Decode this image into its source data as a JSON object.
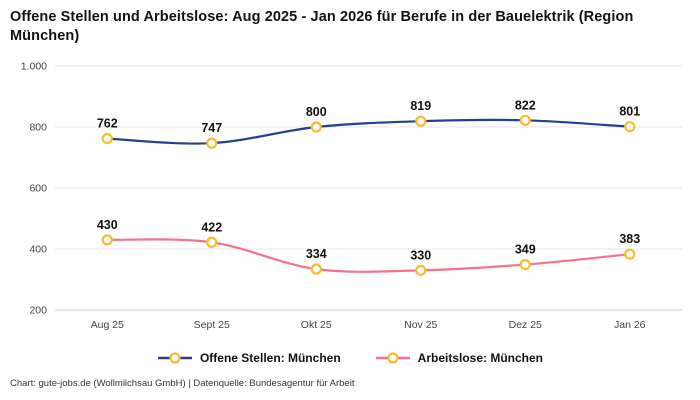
{
  "title": "Offene Stellen und Arbeitslose: Aug 2025 - Jan 2026 für Berufe in der Bauelektrik (Region München)",
  "footer": "Chart: gute-jobs.de (Wollmilchsau GmbH) | Datenquelle: Bundesagentur für Arbeit",
  "colors": {
    "series1": "#25408f",
    "series2": "#f4728c",
    "marker_fill": "#ffffff",
    "marker_stroke": "#f9bb2d",
    "grid": "#e4e4e4",
    "axis": "#cfcfcf",
    "label": "#121212",
    "tick": "#444444"
  },
  "chart_data": {
    "type": "line",
    "title": "Offene Stellen und Arbeitslose: Aug 2025 - Jan 2026 für Berufe in der Bauelektrik (Region München)",
    "categories": [
      "Aug 25",
      "Sept 25",
      "Okt 25",
      "Nov 25",
      "Dez 25",
      "Jan 26"
    ],
    "series": [
      {
        "name": "Offene Stellen: München",
        "color": "#25408f",
        "values": [
          762,
          747,
          800,
          819,
          822,
          801
        ]
      },
      {
        "name": "Arbeitslose: München",
        "color": "#f4728c",
        "values": [
          430,
          422,
          334,
          330,
          349,
          383
        ]
      }
    ],
    "xlabel": "",
    "ylabel": "",
    "ylim": [
      200,
      1000
    ],
    "yticks": [
      200,
      400,
      600,
      800,
      1000
    ],
    "ytick_labels": [
      "200",
      "400",
      "600",
      "800",
      "1.000"
    ],
    "grid": true,
    "legend_position": "bottom",
    "data_labels": true
  }
}
